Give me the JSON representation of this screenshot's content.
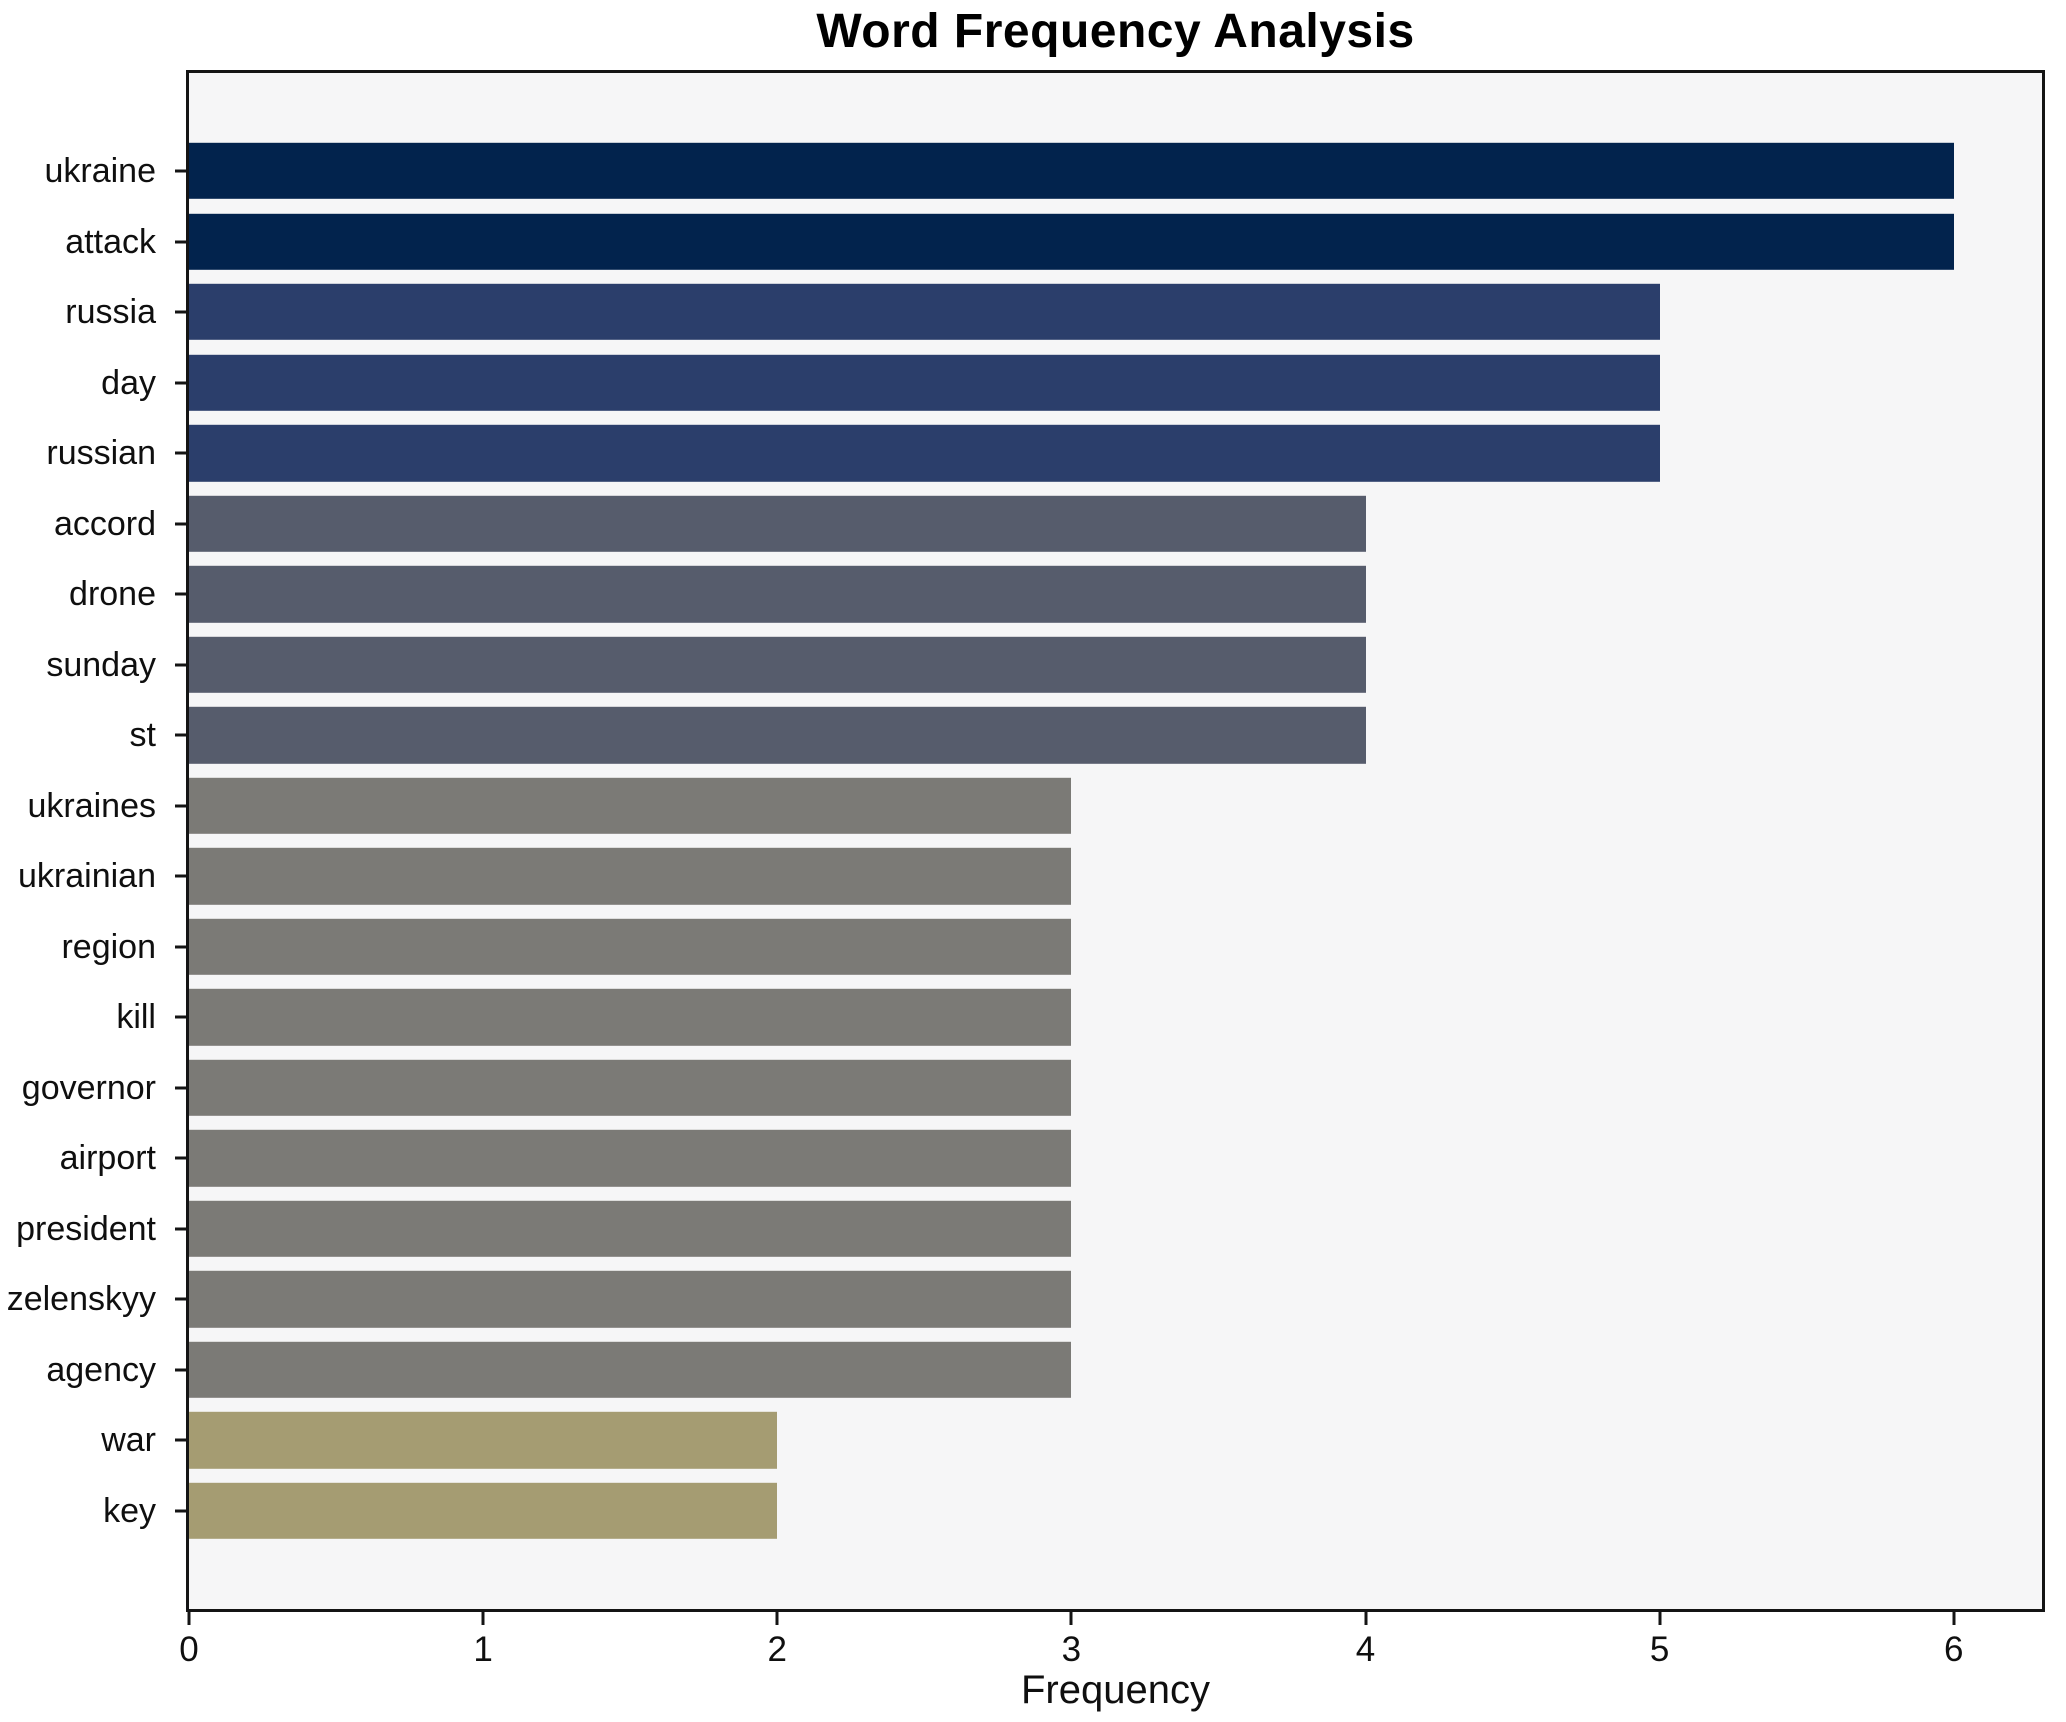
{
  "chart_data": {
    "type": "bar",
    "orientation": "horizontal",
    "title": "Word Frequency Analysis",
    "xlabel": "Frequency",
    "ylabel": "",
    "categories": [
      "ukraine",
      "attack",
      "russia",
      "day",
      "russian",
      "accord",
      "drone",
      "sunday",
      "st",
      "ukraines",
      "ukrainian",
      "region",
      "kill",
      "governor",
      "airport",
      "president",
      "zelenskyy",
      "agency",
      "war",
      "key"
    ],
    "values": [
      6,
      6,
      5,
      5,
      5,
      4,
      4,
      4,
      4,
      3,
      3,
      3,
      3,
      3,
      3,
      3,
      3,
      3,
      2,
      2
    ],
    "bar_colors": [
      "#02234d",
      "#02234d",
      "#2b3e6b",
      "#2b3e6b",
      "#2b3e6b",
      "#565c6c",
      "#565c6c",
      "#565c6c",
      "#565c6c",
      "#7b7a76",
      "#7b7a76",
      "#7b7a76",
      "#7b7a76",
      "#7b7a76",
      "#7b7a76",
      "#7b7a76",
      "#7b7a76",
      "#7b7a76",
      "#a59c72",
      "#a59c72"
    ],
    "value_color_map": {
      "6": "#02234d",
      "5": "#2b3e6b",
      "4": "#565c6c",
      "3": "#7b7a76",
      "2": "#a59c72"
    },
    "xticks": [
      0,
      1,
      2,
      3,
      4,
      5,
      6
    ],
    "xlim": [
      0,
      6.3
    ],
    "grid": false,
    "legend": false,
    "plot_background": "#f6f6f7",
    "figure_background": "#ffffff",
    "axis_color": "#141414",
    "bar_fraction": 0.8,
    "edge_pad_units": 1.39
  }
}
